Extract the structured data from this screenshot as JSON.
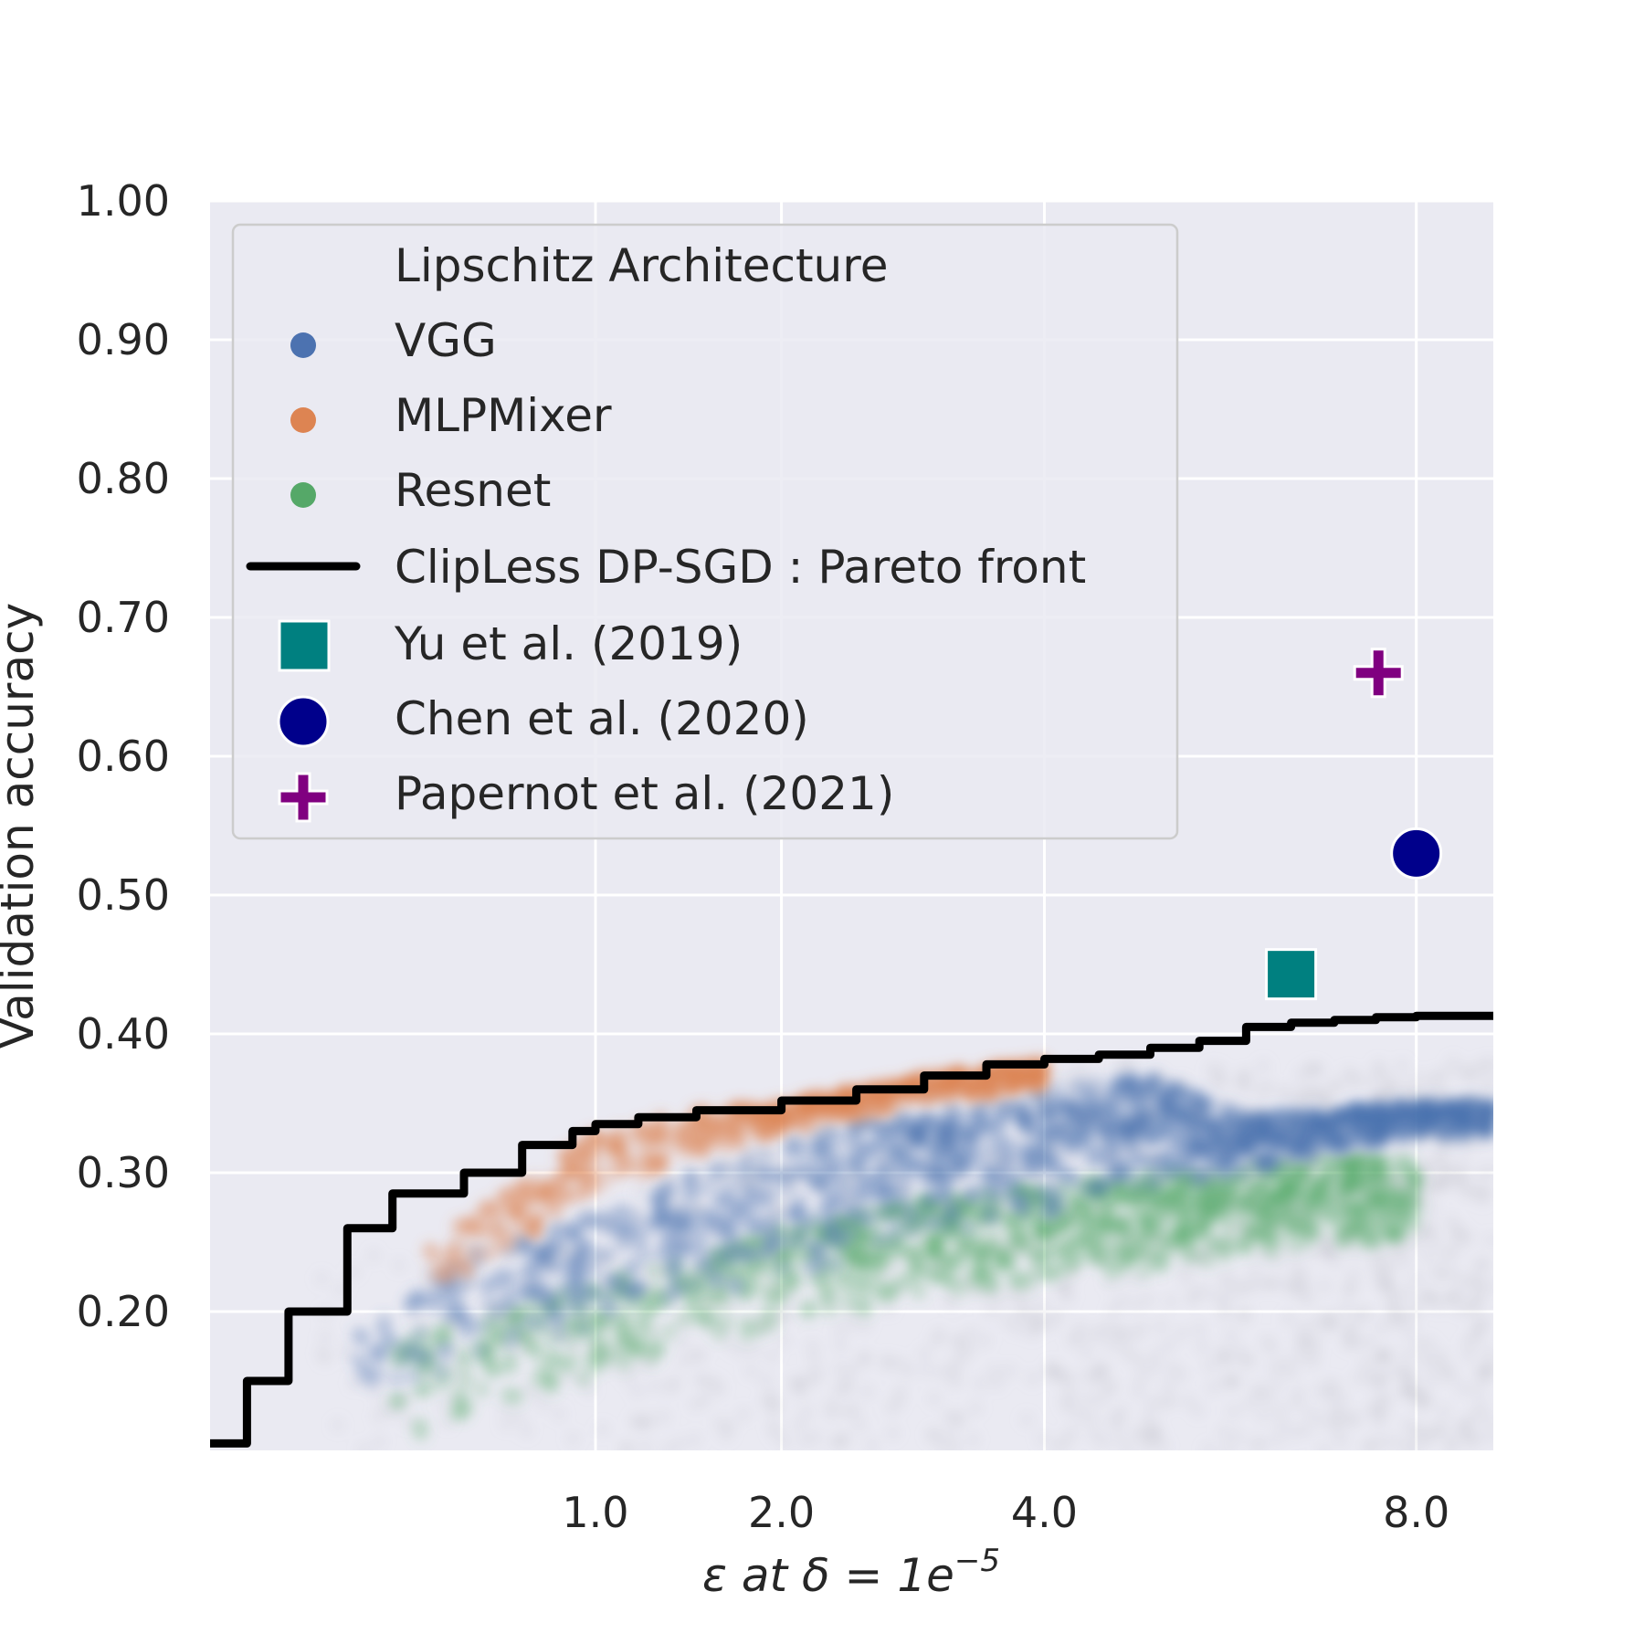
{
  "colors": {
    "background": "#EAEAF2",
    "grid": "#FFFFFF",
    "vgg": "#4C72B0",
    "mlpmixer": "#DD8452",
    "resnet": "#55A868",
    "pareto": "#000000",
    "yu": "#008080",
    "chen": "#00008B",
    "papernot": "#800080",
    "runs_gray": "#B0B0BC"
  },
  "chart_data": {
    "type": "scatter",
    "title": "",
    "xlabel_main": "ε at δ = 1e",
    "xlabel_exp": "−5",
    "ylabel": "Validation accuracy",
    "xlim": [
      0.02,
      9.0
    ],
    "x_scale": "sqrt",
    "ylim": [
      0.1,
      1.0
    ],
    "x_ticks": [
      1.0,
      2.0,
      4.0,
      8.0
    ],
    "x_tick_labels": [
      "1.0",
      "2.0",
      "4.0",
      "8.0"
    ],
    "y_ticks": [
      0.2,
      0.3,
      0.4,
      0.5,
      0.6,
      0.7,
      0.8,
      0.9,
      1.0
    ],
    "y_tick_labels": [
      "0.20",
      "0.30",
      "0.40",
      "0.50",
      "0.60",
      "0.70",
      "0.80",
      "0.90",
      "1.00"
    ],
    "grid": true,
    "legend_position": "top-left",
    "legend_title": "Lipschitz Architecture",
    "series": [
      {
        "name": "VGG",
        "kind": "scatter-cloud",
        "color": "#4C72B0",
        "envelope": {
          "x": [
            0.2,
            0.5,
            1.0,
            1.5,
            2.0,
            2.5,
            3.0,
            4.0,
            5.0,
            6.0,
            7.0,
            8.0,
            9.0
          ],
          "upper": [
            0.18,
            0.24,
            0.27,
            0.3,
            0.32,
            0.335,
            0.345,
            0.36,
            0.37,
            0.34,
            0.345,
            0.35,
            0.35
          ],
          "lower": [
            0.14,
            0.16,
            0.19,
            0.21,
            0.22,
            0.23,
            0.25,
            0.27,
            0.29,
            0.3,
            0.315,
            0.325,
            0.325
          ]
        }
      },
      {
        "name": "MLPMixer",
        "kind": "scatter-cloud",
        "color": "#DD8452",
        "envelope": {
          "x": [
            0.4,
            0.6,
            1.0,
            1.5,
            2.0,
            2.5,
            3.0,
            3.5,
            4.0
          ],
          "upper": [
            0.25,
            0.28,
            0.33,
            0.345,
            0.35,
            0.36,
            0.37,
            0.375,
            0.38
          ],
          "lower": [
            0.2,
            0.24,
            0.28,
            0.31,
            0.33,
            0.34,
            0.35,
            0.355,
            0.36
          ]
        }
      },
      {
        "name": "Resnet",
        "kind": "scatter-cloud",
        "color": "#55A868",
        "envelope": {
          "x": [
            0.3,
            0.6,
            1.0,
            1.5,
            2.0,
            2.5,
            3.0,
            4.0,
            5.0,
            6.0,
            7.0,
            8.0
          ],
          "upper": [
            0.18,
            0.2,
            0.22,
            0.24,
            0.26,
            0.27,
            0.28,
            0.29,
            0.3,
            0.305,
            0.31,
            0.31
          ],
          "lower": [
            0.1,
            0.13,
            0.15,
            0.17,
            0.19,
            0.2,
            0.21,
            0.22,
            0.23,
            0.24,
            0.25,
            0.25
          ]
        }
      },
      {
        "name": "ClipLess DP-SGD : Pareto front",
        "kind": "line",
        "color": "#000000",
        "x": [
          0.02,
          0.05,
          0.1,
          0.2,
          0.3,
          0.35,
          0.5,
          0.7,
          0.9,
          1.0,
          1.2,
          1.5,
          2.0,
          2.5,
          3.0,
          3.5,
          4.0,
          4.5,
          5.0,
          5.5,
          6.0,
          6.5,
          7.0,
          7.5,
          8.0,
          8.5,
          9.0
        ],
        "y": [
          0.105,
          0.15,
          0.2,
          0.26,
          0.285,
          0.285,
          0.3,
          0.32,
          0.33,
          0.335,
          0.34,
          0.345,
          0.352,
          0.36,
          0.37,
          0.378,
          0.382,
          0.385,
          0.39,
          0.395,
          0.405,
          0.408,
          0.41,
          0.412,
          0.413,
          0.413,
          0.413
        ]
      },
      {
        "name": "Yu et al. (2019)",
        "kind": "marker",
        "marker": "square",
        "color": "#008080",
        "x": [
          6.5
        ],
        "y": [
          0.443
        ]
      },
      {
        "name": "Chen et al. (2020)",
        "kind": "marker",
        "marker": "circle",
        "color": "#00008B",
        "x": [
          8.0
        ],
        "y": [
          0.53
        ]
      },
      {
        "name": "Papernot et al. (2021)",
        "kind": "marker",
        "marker": "plus",
        "color": "#800080",
        "x": [
          7.53
        ],
        "y": [
          0.66
        ]
      }
    ]
  }
}
